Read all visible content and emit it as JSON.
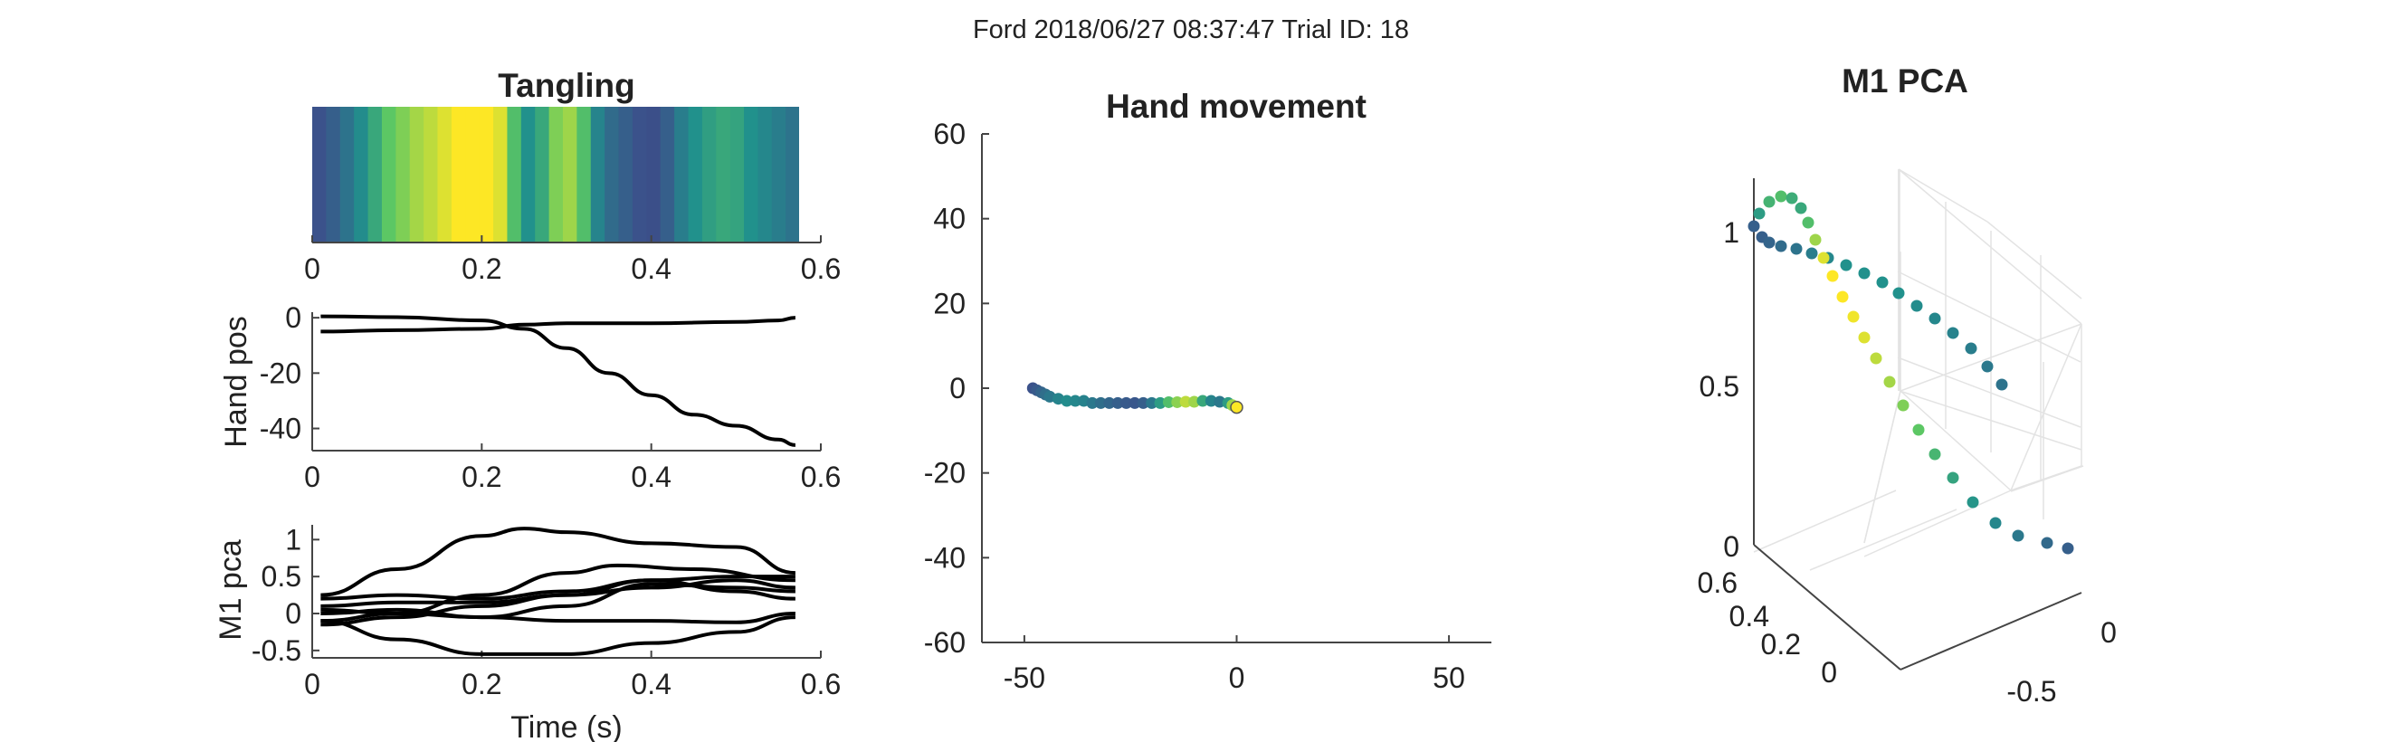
{
  "figure": {
    "suptitle": "Ford 2018/06/27 08:37:47 Trial ID: 18"
  },
  "chart_data": [
    {
      "type": "heatmap",
      "title": "Tangling",
      "xlim": [
        0,
        0.6
      ],
      "xticks": [
        "0",
        "0.2",
        "0.4",
        "0.6"
      ],
      "time_end": 0.575,
      "values": [
        0.25,
        0.3,
        0.38,
        0.48,
        0.6,
        0.74,
        0.8,
        0.86,
        0.9,
        0.95,
        1.0,
        1.0,
        1.0,
        0.95,
        0.7,
        0.5,
        0.6,
        0.8,
        0.85,
        0.7,
        0.45,
        0.35,
        0.3,
        0.25,
        0.24,
        0.3,
        0.42,
        0.5,
        0.56,
        0.6,
        0.58,
        0.5,
        0.46,
        0.42,
        0.38
      ]
    },
    {
      "type": "line",
      "ylabel": "Hand pos",
      "xlim": [
        0,
        0.6
      ],
      "ylim": [
        -48,
        2
      ],
      "xticks": [
        "0",
        "0.2",
        "0.4",
        "0.6"
      ],
      "yticks": [
        "0",
        "-20",
        "-40"
      ],
      "series": [
        {
          "x": [
            0.01,
            0.1,
            0.2,
            0.25,
            0.3,
            0.35,
            0.4,
            0.45,
            0.5,
            0.55,
            0.57
          ],
          "y": [
            0.5,
            0.2,
            -1,
            -4,
            -11,
            -20,
            -28,
            -35,
            -39,
            -44,
            -46
          ]
        },
        {
          "x": [
            0.01,
            0.1,
            0.2,
            0.25,
            0.3,
            0.4,
            0.5,
            0.55,
            0.57
          ],
          "y": [
            -5,
            -4.5,
            -4,
            -2.5,
            -2,
            -2,
            -1.5,
            -1,
            0
          ]
        }
      ]
    },
    {
      "type": "line",
      "ylabel": "M1 pca",
      "xlabel": "Time (s)",
      "xlim": [
        0,
        0.6
      ],
      "ylim": [
        -0.6,
        1.2
      ],
      "xticks": [
        "0",
        "0.2",
        "0.4",
        "0.6"
      ],
      "yticks": [
        "1",
        "0.5",
        "0",
        "-0.5"
      ],
      "series": [
        {
          "x": [
            0.01,
            0.1,
            0.2,
            0.25,
            0.3,
            0.4,
            0.5,
            0.57
          ],
          "y": [
            0.25,
            0.6,
            1.05,
            1.15,
            1.1,
            0.95,
            0.9,
            0.55
          ]
        },
        {
          "x": [
            0.01,
            0.1,
            0.2,
            0.3,
            0.36,
            0.45,
            0.57
          ],
          "y": [
            -0.1,
            0.0,
            0.25,
            0.55,
            0.65,
            0.6,
            0.45
          ]
        },
        {
          "x": [
            0.01,
            0.1,
            0.2,
            0.3,
            0.4,
            0.5,
            0.57
          ],
          "y": [
            0.2,
            0.25,
            0.2,
            0.3,
            0.45,
            0.5,
            0.5
          ]
        },
        {
          "x": [
            0.01,
            0.1,
            0.2,
            0.3,
            0.4,
            0.5,
            0.57
          ],
          "y": [
            0.1,
            0.15,
            0.15,
            0.25,
            0.35,
            0.45,
            0.35
          ]
        },
        {
          "x": [
            0.01,
            0.1,
            0.2,
            0.3,
            0.4,
            0.5,
            0.57
          ],
          "y": [
            0.0,
            0.05,
            -0.05,
            0.1,
            0.4,
            0.35,
            0.3
          ]
        },
        {
          "x": [
            0.01,
            0.1,
            0.2,
            0.3,
            0.4,
            0.5,
            0.57
          ],
          "y": [
            -0.15,
            -0.05,
            0.1,
            0.25,
            0.45,
            0.3,
            0.2
          ]
        },
        {
          "x": [
            0.01,
            0.1,
            0.2,
            0.3,
            0.4,
            0.5,
            0.57
          ],
          "y": [
            0.05,
            0.0,
            -0.05,
            -0.1,
            -0.1,
            -0.12,
            0.0
          ]
        },
        {
          "x": [
            0.01,
            0.1,
            0.2,
            0.3,
            0.4,
            0.5,
            0.57
          ],
          "y": [
            -0.1,
            -0.35,
            -0.55,
            -0.55,
            -0.4,
            -0.25,
            -0.05
          ]
        }
      ]
    },
    {
      "type": "scatter",
      "title": "Hand movement",
      "xlim": [
        -60,
        60
      ],
      "ylim": [
        -60,
        60
      ],
      "xticks": [
        "-50",
        "0",
        "50"
      ],
      "yticks": [
        "60",
        "40",
        "20",
        "0",
        "-20",
        "-40",
        "-60"
      ],
      "points": [
        {
          "x": -48,
          "y": 0,
          "t": 0.25
        },
        {
          "x": -47,
          "y": -0.5,
          "t": 0.28
        },
        {
          "x": -46,
          "y": -1,
          "t": 0.32
        },
        {
          "x": -45,
          "y": -1.5,
          "t": 0.36
        },
        {
          "x": -44,
          "y": -2,
          "t": 0.4
        },
        {
          "x": -42,
          "y": -2.5,
          "t": 0.45
        },
        {
          "x": -40,
          "y": -3,
          "t": 0.48
        },
        {
          "x": -38,
          "y": -3,
          "t": 0.46
        },
        {
          "x": -36,
          "y": -3,
          "t": 0.44
        },
        {
          "x": -34,
          "y": -3.5,
          "t": 0.4
        },
        {
          "x": -32,
          "y": -3.5,
          "t": 0.36
        },
        {
          "x": -30,
          "y": -3.5,
          "t": 0.33
        },
        {
          "x": -28,
          "y": -3.5,
          "t": 0.3
        },
        {
          "x": -26,
          "y": -3.5,
          "t": 0.28
        },
        {
          "x": -24,
          "y": -3.5,
          "t": 0.27
        },
        {
          "x": -22,
          "y": -3.5,
          "t": 0.3
        },
        {
          "x": -20,
          "y": -3.5,
          "t": 0.4
        },
        {
          "x": -18,
          "y": -3.5,
          "t": 0.55
        },
        {
          "x": -16,
          "y": -3.3,
          "t": 0.7
        },
        {
          "x": -14,
          "y": -3.3,
          "t": 0.82
        },
        {
          "x": -12,
          "y": -3.2,
          "t": 0.9
        },
        {
          "x": -10,
          "y": -3.2,
          "t": 0.85
        },
        {
          "x": -8,
          "y": -3,
          "t": 0.6
        },
        {
          "x": -6,
          "y": -3,
          "t": 0.45
        },
        {
          "x": -4,
          "y": -3.2,
          "t": 0.4
        },
        {
          "x": -2,
          "y": -3.5,
          "t": 0.55
        },
        {
          "x": -1,
          "y": -4,
          "t": 0.85
        },
        {
          "x": 0,
          "y": -4.5,
          "t": 1.0
        }
      ]
    },
    {
      "type": "scatter",
      "title": "M1 PCA",
      "zticks": [
        "1",
        "0.5",
        "0"
      ],
      "yticks": [
        "0.6",
        "0.4",
        "0.2",
        "0"
      ],
      "xticks": [
        "0",
        "-0.5"
      ],
      "points_screen_ordered": [
        {
          "t": 0.3
        },
        {
          "t": 0.32
        },
        {
          "t": 0.35
        },
        {
          "t": 0.38
        },
        {
          "t": 0.42
        },
        {
          "t": 0.46
        },
        {
          "t": 0.5
        },
        {
          "t": 0.52
        },
        {
          "t": 0.54
        },
        {
          "t": 0.56
        },
        {
          "t": 0.58
        },
        {
          "t": 0.6
        },
        {
          "t": 0.62
        },
        {
          "t": 0.65
        },
        {
          "t": 0.7
        },
        {
          "t": 0.76
        },
        {
          "t": 0.82
        },
        {
          "t": 0.88
        },
        {
          "t": 0.94
        },
        {
          "t": 1.0
        },
        {
          "t": 1.0
        },
        {
          "t": 0.97
        },
        {
          "t": 0.94
        },
        {
          "t": 0.9
        },
        {
          "t": 0.86
        },
        {
          "t": 0.82
        },
        {
          "t": 0.78
        },
        {
          "t": 0.74
        },
        {
          "t": 0.7
        },
        {
          "t": 0.66
        },
        {
          "t": 0.62
        },
        {
          "t": 0.58
        },
        {
          "t": 0.54
        },
        {
          "t": 0.5
        },
        {
          "t": 0.45
        },
        {
          "t": 0.4
        },
        {
          "t": 0.35
        },
        {
          "t": 0.3
        }
      ]
    }
  ]
}
